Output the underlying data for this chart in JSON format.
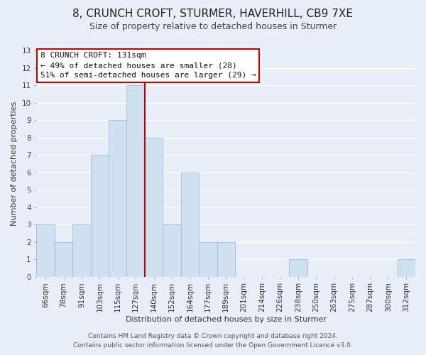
{
  "title": "8, CRUNCH CROFT, STURMER, HAVERHILL, CB9 7XE",
  "subtitle": "Size of property relative to detached houses in Sturmer",
  "xlabel": "Distribution of detached houses by size in Sturmer",
  "ylabel": "Number of detached properties",
  "bar_labels": [
    "66sqm",
    "78sqm",
    "91sqm",
    "103sqm",
    "115sqm",
    "127sqm",
    "140sqm",
    "152sqm",
    "164sqm",
    "177sqm",
    "189sqm",
    "201sqm",
    "214sqm",
    "226sqm",
    "238sqm",
    "250sqm",
    "263sqm",
    "275sqm",
    "287sqm",
    "300sqm",
    "312sqm"
  ],
  "bar_values": [
    3,
    2,
    3,
    7,
    9,
    11,
    8,
    3,
    6,
    2,
    2,
    0,
    0,
    0,
    1,
    0,
    0,
    0,
    0,
    0,
    1
  ],
  "bar_color": "#cfe0f0",
  "bar_edge_color": "#9dbdd8",
  "highlight_index": 5,
  "highlight_line_color": "#cc0000",
  "ylim": [
    0,
    13
  ],
  "yticks": [
    0,
    1,
    2,
    3,
    4,
    5,
    6,
    7,
    8,
    9,
    10,
    11,
    12,
    13
  ],
  "annotation_title": "8 CRUNCH CROFT: 131sqm",
  "annotation_line1": "← 49% of detached houses are smaller (28)",
  "annotation_line2": "51% of semi-detached houses are larger (29) →",
  "annotation_box_facecolor": "#ffffff",
  "annotation_box_edge": "#cc0000",
  "footer_line1": "Contains HM Land Registry data © Crown copyright and database right 2024.",
  "footer_line2": "Contains public sector information licensed under the Open Government Licence v3.0.",
  "background_color": "#e8eef8",
  "plot_bg_color": "#e8eef8",
  "grid_color": "#ffffff",
  "title_fontsize": 11,
  "subtitle_fontsize": 9,
  "axis_label_fontsize": 8,
  "tick_fontsize": 7.5,
  "annotation_fontsize": 8,
  "footer_fontsize": 6.5
}
